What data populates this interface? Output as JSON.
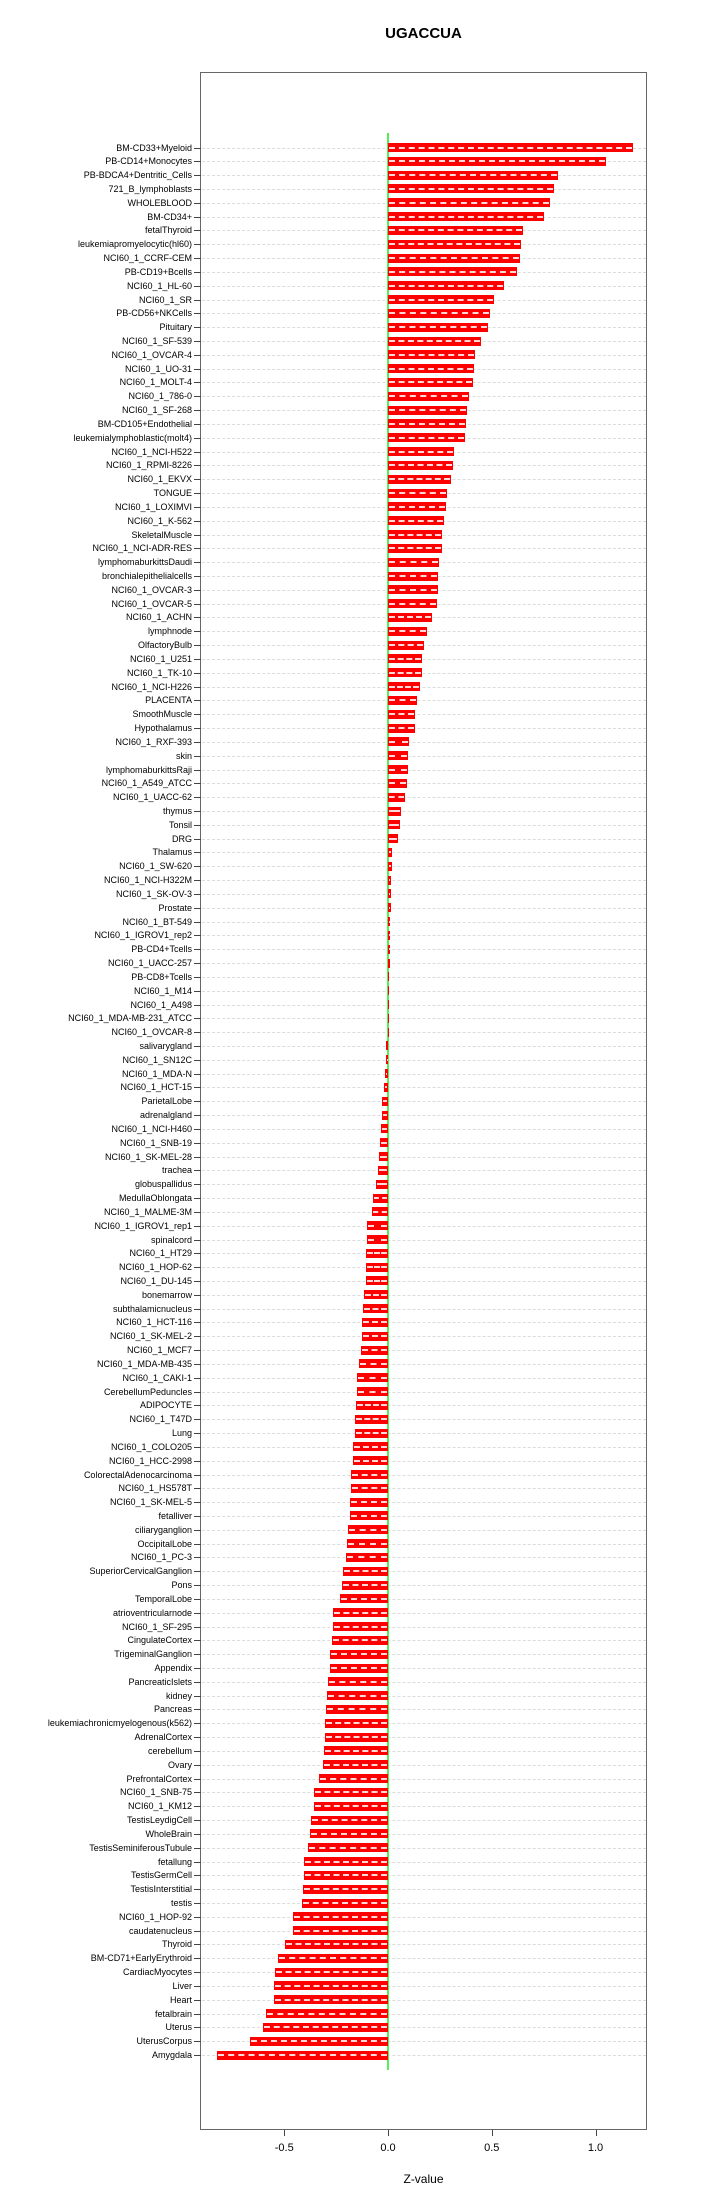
{
  "page": {
    "title": "UGACCUA",
    "xlabel": "Z-value"
  },
  "chart_data": {
    "type": "bar",
    "orientation": "horizontal",
    "title": "UGACCUA",
    "xlabel": "Z-value",
    "ylabel": "",
    "xlim": [
      -0.9,
      1.25
    ],
    "x_ticks": [
      -0.5,
      0.0,
      0.5,
      1.0
    ],
    "x_tick_labels": [
      "-0.5",
      "0.0",
      "0.5",
      "1.0"
    ],
    "grid": true,
    "legend": false,
    "bar_color": "#ff0000",
    "zero_line_color": "#55ee55",
    "grid_color": "#dcdcdc",
    "categories": [
      "BM-CD33+Myeloid",
      "PB-CD14+Monocytes",
      "PB-BDCA4+Dentritic_Cells",
      "721_B_lymphoblasts",
      "WHOLEBLOOD",
      "BM-CD34+",
      "fetalThyroid",
      "leukemiapromyelocytic(hl60)",
      "NCI60_1_CCRF-CEM",
      "PB-CD19+Bcells",
      "NCI60_1_HL-60",
      "NCI60_1_SR",
      "PB-CD56+NKCells",
      "Pituitary",
      "NCI60_1_SF-539",
      "NCI60_1_OVCAR-4",
      "NCI60_1_UO-31",
      "NCI60_1_MOLT-4",
      "NCI60_1_786-0",
      "NCI60_1_SF-268",
      "BM-CD105+Endothelial",
      "leukemialymphoblastic(molt4)",
      "NCI60_1_NCI-H522",
      "NCI60_1_RPMI-8226",
      "NCI60_1_EKVX",
      "TONGUE",
      "NCI60_1_LOXIMVI",
      "NCI60_1_K-562",
      "SkeletalMuscle",
      "NCI60_1_NCI-ADR-RES",
      "lymphomaburkittsDaudi",
      "bronchialepithelialcells",
      "NCI60_1_OVCAR-3",
      "NCI60_1_OVCAR-5",
      "NCI60_1_ACHN",
      "lymphnode",
      "OlfactoryBulb",
      "NCI60_1_U251",
      "NCI60_1_TK-10",
      "NCI60_1_NCI-H226",
      "PLACENTA",
      "SmoothMuscle",
      "Hypothalamus",
      "NCI60_1_RXF-393",
      "skin",
      "lymphomaburkittsRaji",
      "NCI60_1_A549_ATCC",
      "NCI60_1_UACC-62",
      "thymus",
      "Tonsil",
      "DRG",
      "Thalamus",
      "NCI60_1_SW-620",
      "NCI60_1_NCI-H322M",
      "NCI60_1_SK-OV-3",
      "Prostate",
      "NCI60_1_BT-549",
      "NCI60_1_IGROV1_rep2",
      "PB-CD4+Tcells",
      "NCI60_1_UACC-257",
      "PB-CD8+Tcells",
      "NCI60_1_M14",
      "NCI60_1_A498",
      "NCI60_1_MDA-MB-231_ATCC",
      "NCI60_1_OVCAR-8",
      "salivarygland",
      "NCI60_1_SN12C",
      "NCI60_1_MDA-N",
      "NCI60_1_HCT-15",
      "ParietalLobe",
      "adrenalgland",
      "NCI60_1_NCI-H460",
      "NCI60_1_SNB-19",
      "NCI60_1_SK-MEL-28",
      "trachea",
      "globuspallidus",
      "MedullaOblongata",
      "NCI60_1_MALME-3M",
      "NCI60_1_IGROV1_rep1",
      "spinalcord",
      "NCI60_1_HT29",
      "NCI60_1_HOP-62",
      "NCI60_1_DU-145",
      "bonemarrow",
      "subthalamicnucleus",
      "NCI60_1_HCT-116",
      "NCI60_1_SK-MEL-2",
      "NCI60_1_MCF7",
      "NCI60_1_MDA-MB-435",
      "NCI60_1_CAKI-1",
      "CerebellumPeduncles",
      "ADIPOCYTE",
      "NCI60_1_T47D",
      "Lung",
      "NCI60_1_COLO205",
      "NCI60_1_HCC-2998",
      "ColorectalAdenocarcinoma",
      "NCI60_1_HS578T",
      "NCI60_1_SK-MEL-5",
      "fetalliver",
      "ciliaryganglion",
      "OccipitalLobe",
      "NCI60_1_PC-3",
      "SuperiorCervicalGanglion",
      "Pons",
      "TemporalLobe",
      "atrioventricularnode",
      "NCI60_1_SF-295",
      "CingulateCortex",
      "TrigeminalGanglion",
      "Appendix",
      "PancreaticIslets",
      "kidney",
      "Pancreas",
      "leukemiachronicmyelogenous(k562)",
      "AdrenalCortex",
      "cerebellum",
      "Ovary",
      "PrefrontalCortex",
      "NCI60_1_SNB-75",
      "NCI60_1_KM12",
      "TestisLeydigCell",
      "WholeBrain",
      "TestisSeminiferousTubule",
      "fetallung",
      "TestisGermCell",
      "TestisInterstitial",
      "testis",
      "NCI60_1_HOP-92",
      "caudatenucleus",
      "Thyroid",
      "BM-CD71+EarlyErythroid",
      "CardiacMyocytes",
      "Liver",
      "Heart",
      "fetalbrain",
      "Uterus",
      "UterusCorpus",
      "Amygdala"
    ],
    "values": [
      1.18,
      1.05,
      0.82,
      0.8,
      0.78,
      0.75,
      0.65,
      0.64,
      0.635,
      0.62,
      0.56,
      0.51,
      0.49,
      0.48,
      0.45,
      0.42,
      0.415,
      0.41,
      0.39,
      0.38,
      0.375,
      0.37,
      0.32,
      0.315,
      0.305,
      0.285,
      0.28,
      0.27,
      0.262,
      0.26,
      0.245,
      0.242,
      0.24,
      0.235,
      0.21,
      0.19,
      0.172,
      0.165,
      0.162,
      0.155,
      0.14,
      0.132,
      0.128,
      0.102,
      0.098,
      0.096,
      0.09,
      0.082,
      0.065,
      0.056,
      0.047,
      0.018,
      0.017,
      0.016,
      0.015,
      0.013,
      0.012,
      0.012,
      0.011,
      0.01,
      0.006,
      0.005,
      0.004,
      0.001,
      -0.002,
      -0.01,
      -0.012,
      -0.016,
      -0.019,
      -0.029,
      -0.031,
      -0.033,
      -0.04,
      -0.044,
      -0.049,
      -0.056,
      -0.073,
      -0.078,
      -0.099,
      -0.101,
      -0.104,
      -0.105,
      -0.107,
      -0.116,
      -0.121,
      -0.123,
      -0.127,
      -0.131,
      -0.14,
      -0.148,
      -0.15,
      -0.153,
      -0.158,
      -0.159,
      -0.167,
      -0.171,
      -0.178,
      -0.18,
      -0.182,
      -0.184,
      -0.195,
      -0.197,
      -0.202,
      -0.216,
      -0.222,
      -0.229,
      -0.264,
      -0.266,
      -0.271,
      -0.279,
      -0.281,
      -0.287,
      -0.294,
      -0.3,
      -0.304,
      -0.306,
      -0.308,
      -0.314,
      -0.331,
      -0.356,
      -0.358,
      -0.369,
      -0.376,
      -0.385,
      -0.405,
      -0.406,
      -0.408,
      -0.414,
      -0.456,
      -0.46,
      -0.496,
      -0.529,
      -0.545,
      -0.549,
      -0.551,
      -0.589,
      -0.601,
      -0.667,
      -0.823
    ]
  }
}
